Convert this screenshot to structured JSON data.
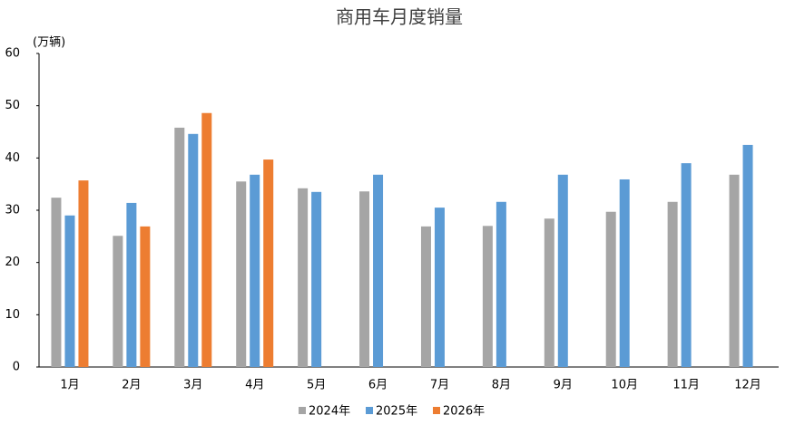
{
  "chart_data": {
    "type": "bar",
    "title": "商用车月度销量",
    "y_label": "(万辆)",
    "categories": [
      "1月",
      "2月",
      "3月",
      "4月",
      "5月",
      "6月",
      "7月",
      "8月",
      "9月",
      "10月",
      "11月",
      "12月"
    ],
    "series": [
      {
        "name": "2024年",
        "color": "#a5a5a5",
        "values": [
          32.4,
          25.1,
          45.8,
          35.5,
          34.2,
          33.6,
          26.9,
          27.0,
          28.4,
          29.7,
          31.6,
          36.8
        ]
      },
      {
        "name": "2025年",
        "color": "#5b9bd5",
        "values": [
          29.0,
          31.4,
          44.6,
          36.8,
          33.5,
          36.8,
          30.5,
          31.6,
          36.8,
          35.9,
          39.0,
          42.5
        ]
      },
      {
        "name": "2026年",
        "color": "#ed7d31",
        "values": [
          35.7,
          26.9,
          48.6,
          39.7,
          null,
          null,
          null,
          null,
          null,
          null,
          null,
          null
        ]
      }
    ],
    "ylim": [
      0,
      60
    ],
    "yticks": [
      0,
      10,
      20,
      30,
      40,
      50,
      60
    ],
    "grid": false,
    "legend": "bottom"
  }
}
